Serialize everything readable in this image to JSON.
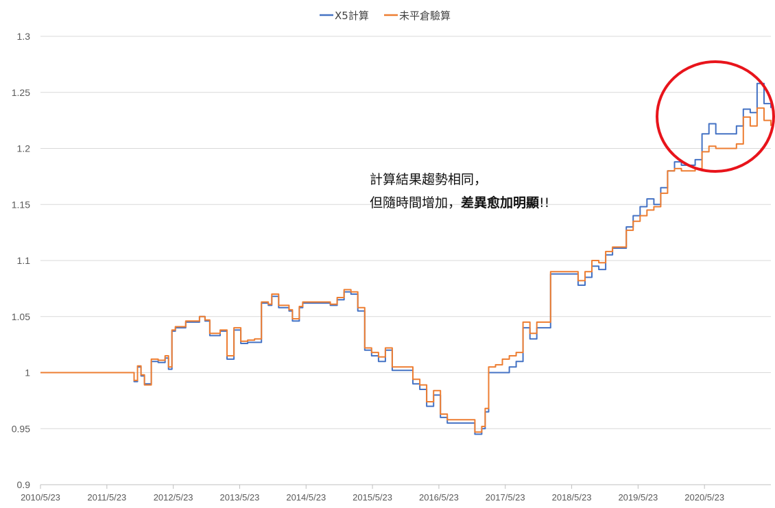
{
  "chart_data": {
    "type": "line",
    "title": "",
    "xlabel": "",
    "ylabel": "",
    "ylim": [
      0.9,
      1.3
    ],
    "yticks": [
      "1.3",
      "1.25",
      "1.2",
      "1.15",
      "1.1",
      "1.05",
      "1",
      "0.95",
      "0.9"
    ],
    "xticks": [
      "2010/5/23",
      "2011/5/23",
      "2012/5/23",
      "2013/5/23",
      "2014/5/23",
      "2015/5/23",
      "2016/5/23",
      "2017/5/23",
      "2018/5/23",
      "2019/5/23",
      "2020/5/23"
    ],
    "xlim": [
      2010.39,
      2021.0
    ],
    "grid": true,
    "legend_position": "top-center",
    "x": [
      2010.39,
      2011.7,
      2011.75,
      2011.8,
      2011.85,
      2011.9,
      2011.95,
      2012.0,
      2012.1,
      2012.2,
      2012.25,
      2012.3,
      2012.35,
      2012.5,
      2012.6,
      2012.7,
      2012.78,
      2012.85,
      2012.95,
      2013.0,
      2013.1,
      2013.2,
      2013.3,
      2013.4,
      2013.5,
      2013.6,
      2013.7,
      2013.75,
      2013.85,
      2014.0,
      2014.05,
      2014.15,
      2014.2,
      2014.3,
      2014.4,
      2014.5,
      2014.6,
      2014.7,
      2014.8,
      2014.9,
      2015.0,
      2015.1,
      2015.2,
      2015.3,
      2015.4,
      2015.5,
      2015.55,
      2015.6,
      2015.7,
      2015.8,
      2015.9,
      2016.0,
      2016.1,
      2016.2,
      2016.3,
      2016.4,
      2016.5,
      2016.6,
      2016.7,
      2016.8,
      2016.85,
      2016.9,
      2017.0,
      2017.1,
      2017.2,
      2017.3,
      2017.4,
      2017.5,
      2017.6,
      2017.7,
      2017.8,
      2017.9,
      2018.1,
      2018.2,
      2018.3,
      2018.4,
      2018.5,
      2018.6,
      2018.7,
      2018.8,
      2018.9,
      2019.0,
      2019.1,
      2019.2,
      2019.3,
      2019.4,
      2019.5,
      2019.6,
      2019.7,
      2019.8,
      2019.9,
      2020.0,
      2020.1,
      2020.2,
      2020.3,
      2020.4,
      2020.5,
      2020.6,
      2020.7,
      2020.8,
      2020.9,
      2021.0
    ],
    "series": [
      {
        "name": "X5計算",
        "color": "#4472C4",
        "values": [
          1.0,
          1.0,
          0.992,
          1.005,
          0.997,
          0.99,
          0.99,
          1.01,
          1.009,
          1.013,
          1.003,
          1.037,
          1.04,
          1.045,
          1.045,
          1.05,
          1.046,
          1.033,
          1.033,
          1.037,
          1.012,
          1.038,
          1.026,
          1.027,
          1.027,
          1.062,
          1.06,
          1.068,
          1.058,
          1.055,
          1.046,
          1.058,
          1.062,
          1.062,
          1.062,
          1.062,
          1.06,
          1.065,
          1.072,
          1.07,
          1.055,
          1.02,
          1.015,
          1.01,
          1.02,
          1.002,
          1.002,
          1.002,
          1.002,
          0.99,
          0.985,
          0.97,
          0.98,
          0.96,
          0.955,
          0.955,
          0.955,
          0.955,
          0.945,
          0.95,
          0.965,
          1.0,
          1.0,
          1.0,
          1.005,
          1.01,
          1.04,
          1.03,
          1.04,
          1.04,
          1.088,
          1.088,
          1.088,
          1.078,
          1.085,
          1.095,
          1.092,
          1.105,
          1.111,
          1.111,
          1.13,
          1.14,
          1.148,
          1.155,
          1.15,
          1.165,
          1.18,
          1.188,
          1.185,
          1.185,
          1.19,
          1.213,
          1.222,
          1.213,
          1.213,
          1.213,
          1.22,
          1.235,
          1.232,
          1.258,
          1.24,
          1.236
        ]
      },
      {
        "name": "未平倉驗算",
        "color": "#ED7D31",
        "values": [
          1.0,
          1.0,
          0.993,
          1.006,
          0.998,
          0.989,
          0.989,
          1.012,
          1.011,
          1.015,
          1.005,
          1.038,
          1.041,
          1.046,
          1.046,
          1.05,
          1.047,
          1.035,
          1.035,
          1.038,
          1.015,
          1.04,
          1.028,
          1.029,
          1.03,
          1.063,
          1.061,
          1.07,
          1.06,
          1.056,
          1.048,
          1.059,
          1.063,
          1.063,
          1.063,
          1.063,
          1.061,
          1.067,
          1.074,
          1.072,
          1.058,
          1.022,
          1.018,
          1.014,
          1.022,
          1.005,
          1.005,
          1.005,
          1.005,
          0.994,
          0.989,
          0.974,
          0.984,
          0.963,
          0.958,
          0.958,
          0.958,
          0.958,
          0.947,
          0.952,
          0.968,
          1.005,
          1.007,
          1.012,
          1.015,
          1.018,
          1.045,
          1.035,
          1.045,
          1.045,
          1.09,
          1.09,
          1.09,
          1.082,
          1.09,
          1.1,
          1.098,
          1.108,
          1.112,
          1.112,
          1.127,
          1.135,
          1.14,
          1.145,
          1.148,
          1.16,
          1.18,
          1.182,
          1.18,
          1.18,
          1.182,
          1.197,
          1.202,
          1.2,
          1.2,
          1.2,
          1.204,
          1.228,
          1.22,
          1.236,
          1.225,
          1.22
        ]
      }
    ]
  },
  "annotation": {
    "line1": "計算結果趨勢相同，",
    "line2_plain": "但隨時間增加，",
    "line2_bold": "差異愈加明顯",
    "line2_tail": "!!"
  }
}
